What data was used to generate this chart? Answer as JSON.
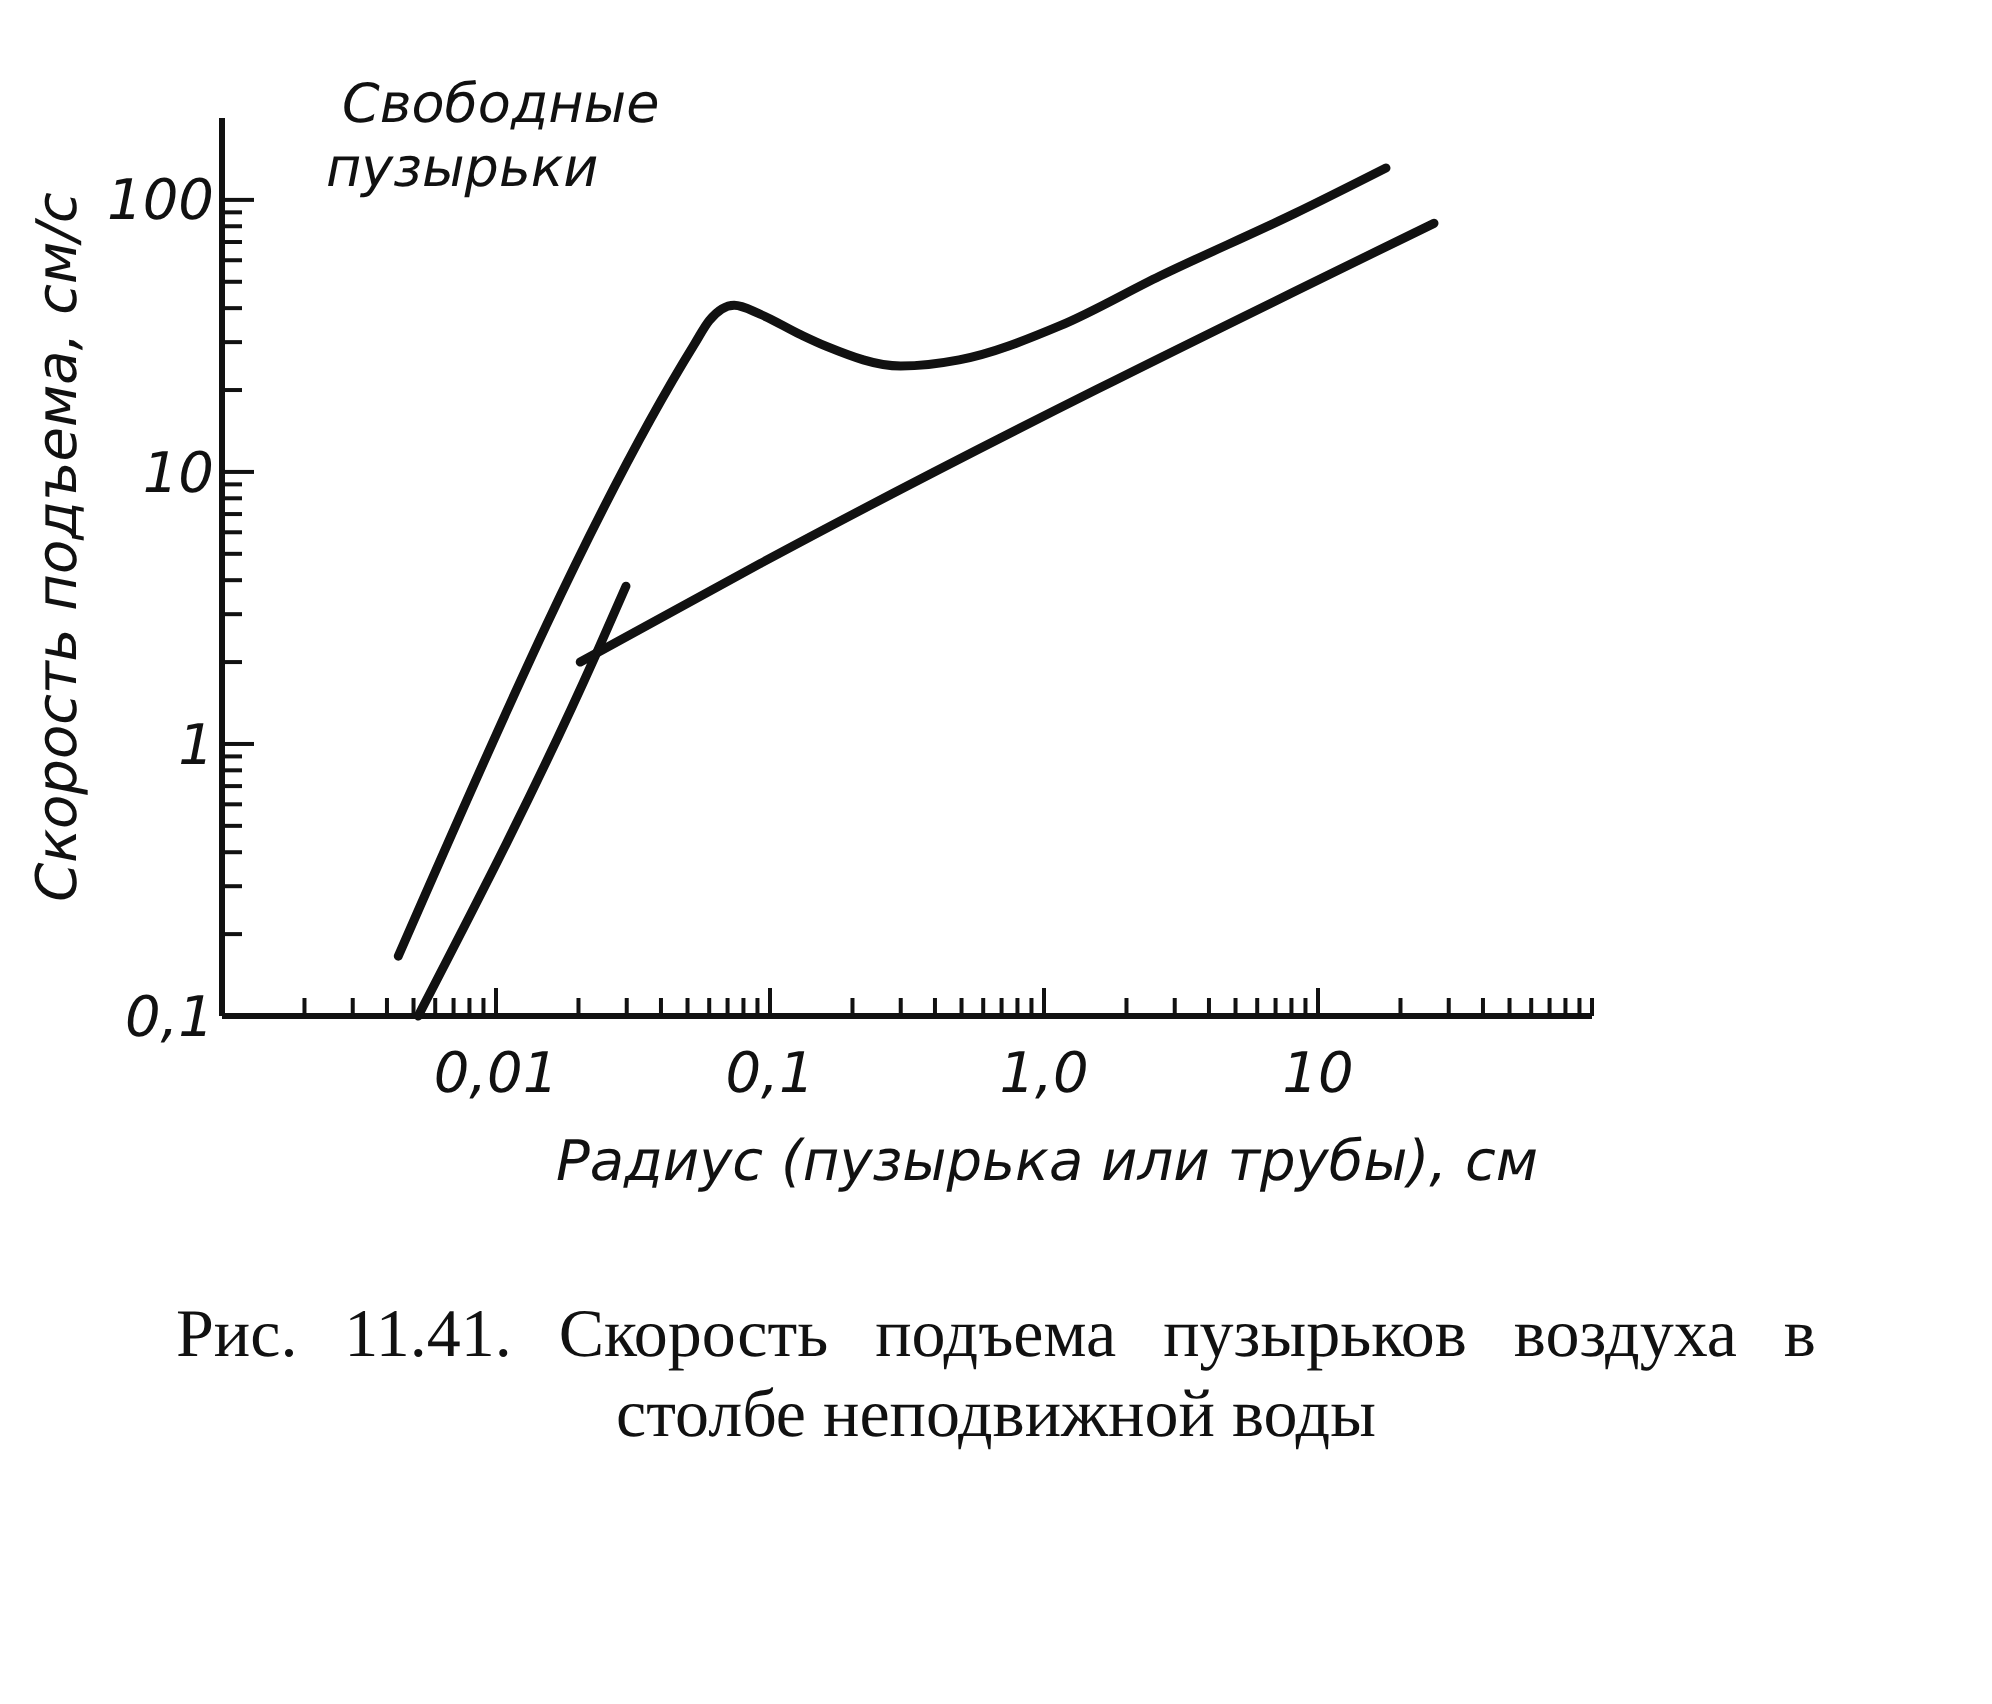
{
  "chart_data": {
    "type": "line",
    "log": "xy",
    "grid": false,
    "marker": "none",
    "line_style": "solid",
    "xlabel": "Радиус (пузырька или трубы), см",
    "ylabel": "Скорость подъема, см/с",
    "xlim": [
      0.001,
      100
    ],
    "ylim": [
      0.1,
      200
    ],
    "xticks": [
      {
        "value": 0.002,
        "label": null
      },
      {
        "value": 0.003,
        "label": null
      },
      {
        "value": 0.004,
        "label": null
      },
      {
        "value": 0.005,
        "label": null
      },
      {
        "value": 0.006,
        "label": null
      },
      {
        "value": 0.007,
        "label": null
      },
      {
        "value": 0.008,
        "label": null
      },
      {
        "value": 0.009,
        "label": null
      },
      {
        "value": 0.01,
        "label": "0,01"
      },
      {
        "value": 0.02,
        "label": null
      },
      {
        "value": 0.03,
        "label": null
      },
      {
        "value": 0.04,
        "label": null
      },
      {
        "value": 0.05,
        "label": null
      },
      {
        "value": 0.06,
        "label": null
      },
      {
        "value": 0.07,
        "label": null
      },
      {
        "value": 0.08,
        "label": null
      },
      {
        "value": 0.09,
        "label": null
      },
      {
        "value": 0.1,
        "label": "0,1"
      },
      {
        "value": 0.2,
        "label": null
      },
      {
        "value": 0.3,
        "label": null
      },
      {
        "value": 0.4,
        "label": null
      },
      {
        "value": 0.5,
        "label": null
      },
      {
        "value": 0.6,
        "label": null
      },
      {
        "value": 0.7,
        "label": null
      },
      {
        "value": 0.8,
        "label": null
      },
      {
        "value": 0.9,
        "label": null
      },
      {
        "value": 1,
        "label": "1,0"
      },
      {
        "value": 2,
        "label": null
      },
      {
        "value": 3,
        "label": null
      },
      {
        "value": 4,
        "label": null
      },
      {
        "value": 5,
        "label": null
      },
      {
        "value": 6,
        "label": null
      },
      {
        "value": 7,
        "label": null
      },
      {
        "value": 8,
        "label": null
      },
      {
        "value": 9,
        "label": null
      },
      10,
      {
        "value": 20,
        "label": null
      },
      {
        "value": 30,
        "label": null
      },
      {
        "value": 40,
        "label": null
      },
      {
        "value": 50,
        "label": null
      },
      {
        "value": 60,
        "label": null
      },
      {
        "value": 70,
        "label": null
      },
      {
        "value": 80,
        "label": null
      },
      {
        "value": 90,
        "label": null
      },
      {
        "value": 100,
        "label": null
      }
    ],
    "yticks": [
      {
        "value": 0.1,
        "label": "0,1"
      },
      {
        "value": 0.2,
        "label": null
      },
      {
        "value": 0.3,
        "label": null
      },
      {
        "value": 0.4,
        "label": null
      },
      {
        "value": 0.5,
        "label": null
      },
      {
        "value": 0.6,
        "label": null
      },
      {
        "value": 0.7,
        "label": null
      },
      {
        "value": 0.8,
        "label": null
      },
      {
        "value": 0.9,
        "label": null
      },
      1,
      {
        "value": 2,
        "label": null
      },
      {
        "value": 3,
        "label": null
      },
      {
        "value": 4,
        "label": null
      },
      {
        "value": 5,
        "label": null
      },
      {
        "value": 6,
        "label": null
      },
      {
        "value": 7,
        "label": null
      },
      {
        "value": 8,
        "label": null
      },
      {
        "value": 9,
        "label": null
      },
      10,
      {
        "value": 20,
        "label": null
      },
      {
        "value": 30,
        "label": null
      },
      {
        "value": 40,
        "label": null
      },
      {
        "value": 50,
        "label": null
      },
      {
        "value": 60,
        "label": null
      },
      {
        "value": 70,
        "label": null
      },
      {
        "value": 80,
        "label": null
      },
      {
        "value": 90,
        "label": null
      },
      100
    ],
    "series": [
      {
        "name": "Свободные пузырьки",
        "color": "#111111",
        "x": [
          0.0044,
          0.053,
          0.06,
          0.074,
          0.092,
          0.129,
          0.16,
          0.3,
          0.49,
          1.14,
          2.65,
          8.2,
          17.7
        ],
        "values": [
          0.166,
          29.5,
          36,
          41,
          38,
          32,
          29,
          24.5,
          25.8,
          34.4,
          52.5,
          89,
          131
        ]
      },
      {
        "color": "#111111",
        "x": [
          0.0052,
          0.023,
          0.0298
        ],
        "values": [
          0.1,
          2.1,
          3.8
        ]
      },
      {
        "color": "#111111",
        "x": [
          0.0203,
          0.092,
          26.5
        ],
        "values": [
          2.0,
          4.6,
          82
        ]
      }
    ],
    "annotations": [
      "Рис. 11.41. Скорость подъема пузырьков воздуха в столбе неподвижной воды"
    ]
  }
}
